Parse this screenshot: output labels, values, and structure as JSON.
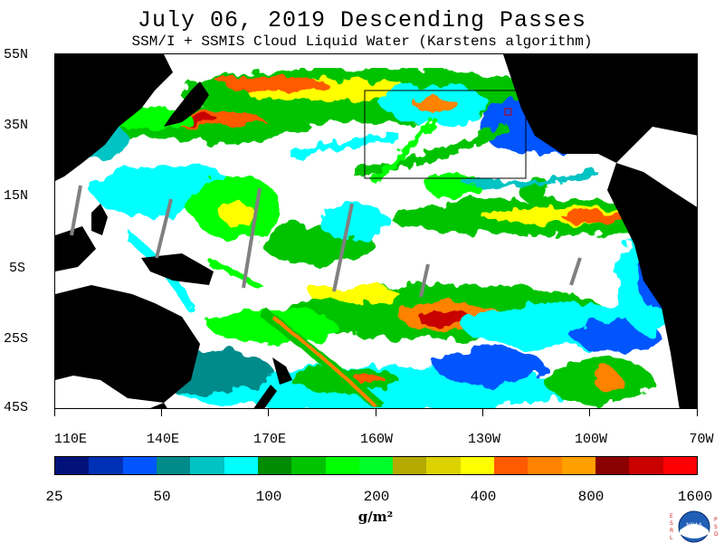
{
  "title": "July 06, 2019  Descending Passes",
  "subtitle": "SSM/I + SSMIS Cloud Liquid Water (Karstens algorithm)",
  "lat_labels": [
    "55N",
    "35N",
    "15N",
    "5S",
    "25S",
    "45S"
  ],
  "lon_labels": [
    "110E",
    "140E",
    "170E",
    "160W",
    "130W",
    "100W",
    "70W"
  ],
  "colorbar": {
    "colors": [
      "#00127a",
      "#0030b4",
      "#0055ff",
      "#008b8b",
      "#00c3c3",
      "#00ffff",
      "#008b00",
      "#00c300",
      "#00ff00",
      "#00ff2a",
      "#b4aa00",
      "#dcd200",
      "#ffff00",
      "#ff5a00",
      "#ff8200",
      "#ffa000",
      "#8b0000",
      "#c80000",
      "#ff0000"
    ],
    "labels": [
      "25",
      "50",
      "100",
      "200",
      "400",
      "800",
      "1600"
    ],
    "unit": "g/m²"
  },
  "logo": {
    "left_text": "ESRL",
    "right_text": "PSD",
    "center": "NOAA"
  }
}
